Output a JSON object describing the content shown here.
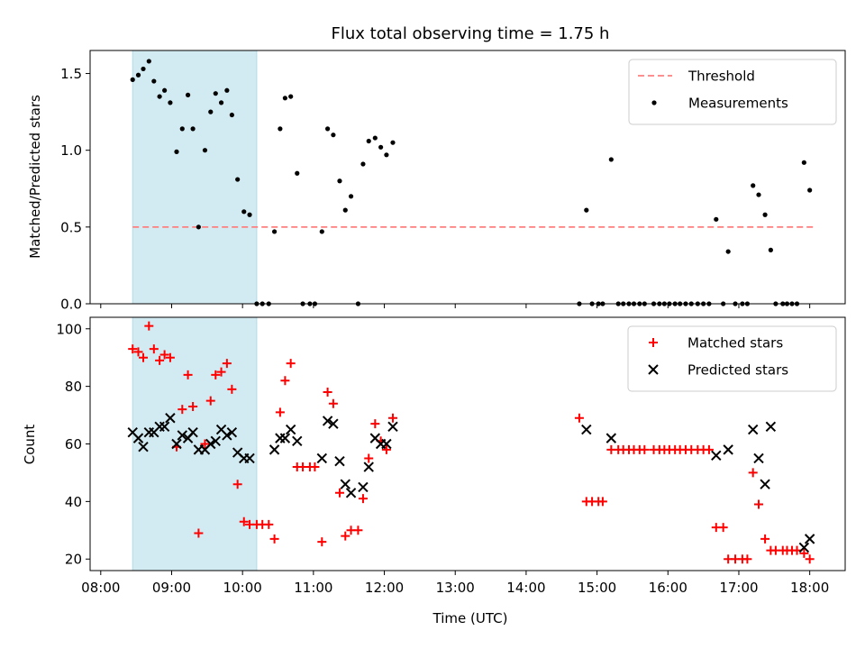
{
  "chart_data": {
    "title": "Flux total observing time = 1.75 h",
    "xlabel": "Time (UTC)",
    "x_unit": "hours UTC",
    "xlim": [
      7.85,
      18.5
    ],
    "x_ticks": [
      8,
      9,
      10,
      11,
      12,
      13,
      14,
      15,
      16,
      17,
      18
    ],
    "x_tick_labels": [
      "08:00",
      "09:00",
      "10:00",
      "11:00",
      "12:00",
      "13:00",
      "14:00",
      "15:00",
      "16:00",
      "17:00",
      "18:00"
    ],
    "shaded_span": [
      8.45,
      10.2
    ],
    "shade_color": "#add8e6",
    "charts": [
      {
        "type": "scatter",
        "ylabel": "Matched/Predicted stars",
        "ylim": [
          0,
          1.65
        ],
        "y_ticks": [
          0.0,
          0.5,
          1.0,
          1.5
        ],
        "y_tick_labels": [
          "0.0",
          "0.5",
          "1.0",
          "1.5"
        ],
        "legend_position": "top-right",
        "threshold": {
          "name": "Threshold",
          "y": 0.5,
          "x_range": [
            8.45,
            18.05
          ],
          "color": "#ff7f7f"
        },
        "series": [
          {
            "name": "Measurements",
            "marker": "dot",
            "color": "#000000",
            "points": [
              [
                8.45,
                1.46
              ],
              [
                8.53,
                1.49
              ],
              [
                8.6,
                1.53
              ],
              [
                8.68,
                1.58
              ],
              [
                8.75,
                1.45
              ],
              [
                8.83,
                1.35
              ],
              [
                8.9,
                1.39
              ],
              [
                8.98,
                1.31
              ],
              [
                9.07,
                0.99
              ],
              [
                9.15,
                1.14
              ],
              [
                9.23,
                1.36
              ],
              [
                9.3,
                1.14
              ],
              [
                9.38,
                0.5
              ],
              [
                9.47,
                1.0
              ],
              [
                9.55,
                1.25
              ],
              [
                9.62,
                1.37
              ],
              [
                9.7,
                1.31
              ],
              [
                9.78,
                1.39
              ],
              [
                9.85,
                1.23
              ],
              [
                9.93,
                0.81
              ],
              [
                10.02,
                0.6
              ],
              [
                10.1,
                0.58
              ],
              [
                10.2,
                0.0
              ],
              [
                10.28,
                0.0
              ],
              [
                10.37,
                0.0
              ],
              [
                10.45,
                0.47
              ],
              [
                10.53,
                1.14
              ],
              [
                10.6,
                1.34
              ],
              [
                10.68,
                1.35
              ],
              [
                10.77,
                0.85
              ],
              [
                10.85,
                0.0
              ],
              [
                10.95,
                0.0
              ],
              [
                11.02,
                0.0
              ],
              [
                11.12,
                0.47
              ],
              [
                11.2,
                1.14
              ],
              [
                11.28,
                1.1
              ],
              [
                11.37,
                0.8
              ],
              [
                11.45,
                0.61
              ],
              [
                11.53,
                0.7
              ],
              [
                11.63,
                0.0
              ],
              [
                11.7,
                0.91
              ],
              [
                11.78,
                1.06
              ],
              [
                11.87,
                1.08
              ],
              [
                11.95,
                1.02
              ],
              [
                12.03,
                0.97
              ],
              [
                12.12,
                1.05
              ],
              [
                14.75,
                0.0
              ],
              [
                14.85,
                0.61
              ],
              [
                14.93,
                0.0
              ],
              [
                15.02,
                0.0
              ],
              [
                15.08,
                0.0
              ],
              [
                15.2,
                0.94
              ],
              [
                15.3,
                0.0
              ],
              [
                15.37,
                0.0
              ],
              [
                15.45,
                0.0
              ],
              [
                15.52,
                0.0
              ],
              [
                15.6,
                0.0
              ],
              [
                15.67,
                0.0
              ],
              [
                15.8,
                0.0
              ],
              [
                15.88,
                0.0
              ],
              [
                15.95,
                0.0
              ],
              [
                16.02,
                0.0
              ],
              [
                16.1,
                0.0
              ],
              [
                16.17,
                0.0
              ],
              [
                16.25,
                0.0
              ],
              [
                16.33,
                0.0
              ],
              [
                16.42,
                0.0
              ],
              [
                16.5,
                0.0
              ],
              [
                16.58,
                0.0
              ],
              [
                16.68,
                0.55
              ],
              [
                16.78,
                0.0
              ],
              [
                16.85,
                0.34
              ],
              [
                16.95,
                0.0
              ],
              [
                17.05,
                0.0
              ],
              [
                17.12,
                0.0
              ],
              [
                17.2,
                0.77
              ],
              [
                17.28,
                0.71
              ],
              [
                17.37,
                0.58
              ],
              [
                17.45,
                0.35
              ],
              [
                17.52,
                0.0
              ],
              [
                17.62,
                0.0
              ],
              [
                17.68,
                0.0
              ],
              [
                17.75,
                0.0
              ],
              [
                17.82,
                0.0
              ],
              [
                17.92,
                0.92
              ],
              [
                18.0,
                0.74
              ]
            ]
          }
        ]
      },
      {
        "type": "scatter",
        "ylabel": "Count",
        "ylim": [
          16,
          104
        ],
        "y_ticks": [
          20,
          40,
          60,
          80,
          100
        ],
        "y_tick_labels": [
          "20",
          "40",
          "60",
          "80",
          "100"
        ],
        "legend_position": "top-right",
        "series": [
          {
            "name": "Matched stars",
            "marker": "plus",
            "color": "#ff0000",
            "points": [
              [
                8.45,
                93
              ],
              [
                8.53,
                92
              ],
              [
                8.6,
                90
              ],
              [
                8.68,
                101
              ],
              [
                8.75,
                93
              ],
              [
                8.83,
                89
              ],
              [
                8.9,
                91
              ],
              [
                8.98,
                90
              ],
              [
                9.07,
                59
              ],
              [
                9.15,
                72
              ],
              [
                9.23,
                84
              ],
              [
                9.3,
                73
              ],
              [
                9.38,
                29
              ],
              [
                9.47,
                60
              ],
              [
                9.55,
                75
              ],
              [
                9.62,
                84
              ],
              [
                9.7,
                85
              ],
              [
                9.78,
                88
              ],
              [
                9.85,
                79
              ],
              [
                9.93,
                46
              ],
              [
                10.02,
                33
              ],
              [
                10.1,
                32
              ],
              [
                10.2,
                32
              ],
              [
                10.28,
                32
              ],
              [
                10.37,
                32
              ],
              [
                10.45,
                27
              ],
              [
                10.53,
                71
              ],
              [
                10.6,
                82
              ],
              [
                10.68,
                88
              ],
              [
                10.77,
                52
              ],
              [
                10.85,
                52
              ],
              [
                10.95,
                52
              ],
              [
                11.02,
                52
              ],
              [
                11.12,
                26
              ],
              [
                11.2,
                78
              ],
              [
                11.28,
                74
              ],
              [
                11.37,
                43
              ],
              [
                11.45,
                28
              ],
              [
                11.53,
                30
              ],
              [
                11.63,
                30
              ],
              [
                11.7,
                41
              ],
              [
                11.78,
                55
              ],
              [
                11.87,
                67
              ],
              [
                11.95,
                61
              ],
              [
                12.03,
                58
              ],
              [
                12.12,
                69
              ],
              [
                14.75,
                69
              ],
              [
                14.85,
                40
              ],
              [
                14.93,
                40
              ],
              [
                15.02,
                40
              ],
              [
                15.08,
                40
              ],
              [
                15.2,
                58
              ],
              [
                15.3,
                58
              ],
              [
                15.37,
                58
              ],
              [
                15.45,
                58
              ],
              [
                15.52,
                58
              ],
              [
                15.6,
                58
              ],
              [
                15.67,
                58
              ],
              [
                15.8,
                58
              ],
              [
                15.88,
                58
              ],
              [
                15.95,
                58
              ],
              [
                16.02,
                58
              ],
              [
                16.1,
                58
              ],
              [
                16.17,
                58
              ],
              [
                16.25,
                58
              ],
              [
                16.33,
                58
              ],
              [
                16.42,
                58
              ],
              [
                16.5,
                58
              ],
              [
                16.58,
                58
              ],
              [
                16.68,
                31
              ],
              [
                16.78,
                31
              ],
              [
                16.85,
                20
              ],
              [
                16.95,
                20
              ],
              [
                17.05,
                20
              ],
              [
                17.12,
                20
              ],
              [
                17.2,
                50
              ],
              [
                17.28,
                39
              ],
              [
                17.37,
                27
              ],
              [
                17.45,
                23
              ],
              [
                17.52,
                23
              ],
              [
                17.62,
                23
              ],
              [
                17.68,
                23
              ],
              [
                17.75,
                23
              ],
              [
                17.82,
                23
              ],
              [
                17.92,
                22
              ],
              [
                18.0,
                20
              ]
            ]
          },
          {
            "name": "Predicted stars",
            "marker": "x",
            "color": "#000000",
            "points": [
              [
                8.45,
                64
              ],
              [
                8.53,
                62
              ],
              [
                8.6,
                59
              ],
              [
                8.68,
                64
              ],
              [
                8.75,
                64
              ],
              [
                8.83,
                66
              ],
              [
                8.9,
                66
              ],
              [
                8.98,
                69
              ],
              [
                9.07,
                60
              ],
              [
                9.15,
                63
              ],
              [
                9.23,
                62
              ],
              [
                9.3,
                64
              ],
              [
                9.38,
                58
              ],
              [
                9.47,
                58
              ],
              [
                9.55,
                60
              ],
              [
                9.62,
                61
              ],
              [
                9.7,
                65
              ],
              [
                9.78,
                63
              ],
              [
                9.85,
                64
              ],
              [
                9.93,
                57
              ],
              [
                10.02,
                55
              ],
              [
                10.1,
                55
              ],
              [
                10.45,
                58
              ],
              [
                10.53,
                62
              ],
              [
                10.6,
                62
              ],
              [
                10.68,
                65
              ],
              [
                10.77,
                61
              ],
              [
                11.12,
                55
              ],
              [
                11.2,
                68
              ],
              [
                11.28,
                67
              ],
              [
                11.37,
                54
              ],
              [
                11.45,
                46
              ],
              [
                11.53,
                43
              ],
              [
                11.7,
                45
              ],
              [
                11.78,
                52
              ],
              [
                11.87,
                62
              ],
              [
                11.95,
                60
              ],
              [
                12.03,
                60
              ],
              [
                12.12,
                66
              ],
              [
                14.85,
                65
              ],
              [
                15.2,
                62
              ],
              [
                16.68,
                56
              ],
              [
                16.85,
                58
              ],
              [
                17.2,
                65
              ],
              [
                17.28,
                55
              ],
              [
                17.37,
                46
              ],
              [
                17.45,
                66
              ],
              [
                17.92,
                24
              ],
              [
                18.0,
                27
              ]
            ]
          }
        ]
      }
    ]
  }
}
